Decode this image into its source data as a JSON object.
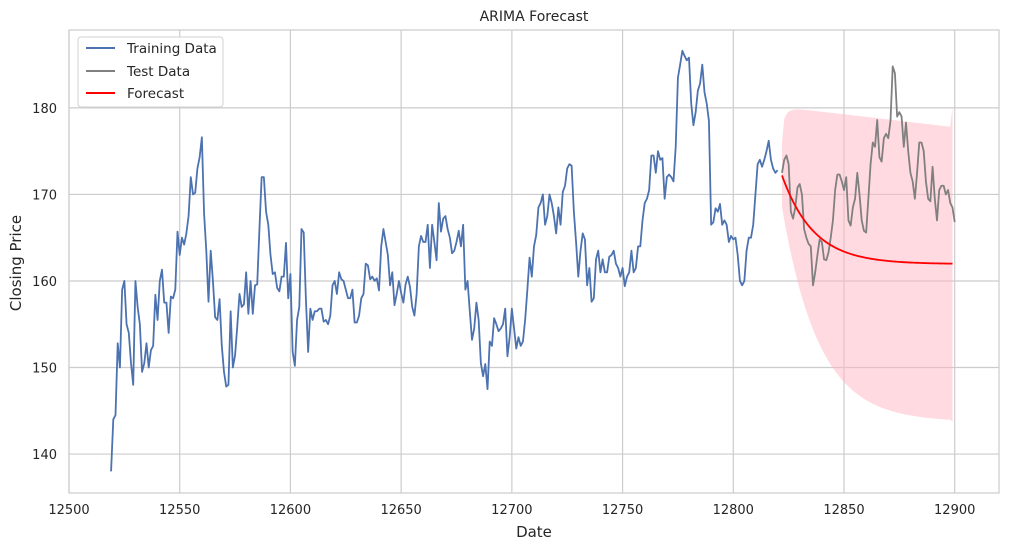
{
  "chart_data": {
    "type": "line",
    "title": "ARIMA Forecast",
    "xlabel": "Date",
    "ylabel": "Closing Price",
    "xlim": [
      12500,
      12920
    ],
    "ylim": [
      135.5,
      189
    ],
    "x_ticks": [
      12500,
      12550,
      12600,
      12650,
      12700,
      12750,
      12800,
      12850,
      12900
    ],
    "y_ticks": [
      140,
      150,
      160,
      170,
      180
    ],
    "grid": true,
    "legend_position": "top-left",
    "colors": {
      "training": "#4c72b0",
      "test": "#808080",
      "forecast": "#ff0000",
      "interval": "#ffb6c1"
    },
    "legend": [
      "Training Data",
      "Test Data",
      "Forecast"
    ],
    "series": [
      {
        "name": "Training Data",
        "x_start": 12519,
        "values": [
          138,
          144,
          144.5,
          152.8,
          150,
          159,
          160,
          155,
          154,
          150.5,
          148,
          160,
          157,
          155,
          149.5,
          150.5,
          152.8,
          150,
          152,
          152.5,
          158.4,
          155.5,
          160,
          161.3,
          157.5,
          157.5,
          154,
          158.2,
          158,
          159,
          165.7,
          163,
          165,
          164.2,
          165.5,
          167.5,
          172,
          170,
          170.2,
          173,
          174.3,
          176.6,
          167.8,
          163.5,
          157.6,
          163.5,
          160,
          155.8,
          155.5,
          157.9,
          152.5,
          149.5,
          147.8,
          148,
          156.5,
          150,
          151.4,
          154.8,
          158.5,
          157,
          157.3,
          161,
          156.2,
          160,
          156.2,
          159.5,
          159.6,
          166,
          172,
          172,
          168,
          166.5,
          163,
          160.8,
          161,
          159.2,
          158.8,
          160.5,
          160.5,
          164.4,
          158,
          160.8,
          151.8,
          150.2,
          155.5,
          157,
          166,
          165.6,
          157.8,
          151.8,
          156.8,
          155.5,
          156.5,
          156.5,
          156.8,
          156.8,
          155.3,
          155.5,
          155,
          156,
          159.5,
          160,
          158.5,
          161,
          160.2,
          160,
          159,
          158,
          158,
          159,
          155.2,
          155.2,
          156,
          158,
          158.5,
          162,
          161.8,
          160.2,
          160.5,
          160,
          160.3,
          158.9,
          164,
          166,
          164.5,
          163,
          159.5,
          161,
          157.2,
          158.5,
          160,
          158.6,
          157.5,
          159.6,
          160.5,
          159.3,
          157,
          156,
          158.5,
          164,
          165.2,
          164.5,
          164.5,
          166.5,
          161.5,
          166.5,
          164.5,
          162.4,
          169,
          165.7,
          167.2,
          167.5,
          166,
          165,
          163.2,
          163.5,
          164.5,
          165.8,
          164,
          166.5,
          159,
          160,
          156.5,
          153.2,
          154.5,
          157.5,
          155.5,
          150.5,
          149,
          150.4,
          147.5,
          153,
          152.5,
          155.7,
          155,
          154.2,
          154.5,
          155,
          156.8,
          151.3,
          153.5,
          156.8,
          154.5,
          152.2,
          153.5,
          152.5,
          153,
          155.5,
          159,
          162.7,
          160.5,
          164,
          165.3,
          168.5,
          169,
          170,
          166.5,
          167.5,
          170,
          169,
          167.5,
          165.5,
          168.5,
          166.5,
          170.3,
          171,
          173,
          173.5,
          173.3,
          168,
          164.5,
          160.5,
          163.5,
          165.5,
          164.8,
          159.5,
          161.5,
          157.6,
          158,
          162.5,
          163.5,
          161,
          162.5,
          161,
          161,
          162.8,
          163,
          163.5,
          162,
          161.5,
          160.5,
          161.5,
          159.4,
          160.5,
          161,
          163.5,
          161,
          161.5,
          164,
          164,
          167,
          169,
          169.5,
          170.5,
          174.5,
          174.5,
          172.5,
          175,
          174,
          174.2,
          169.5,
          172,
          172.3,
          172,
          171.5,
          175.5,
          183.5,
          185,
          186.6,
          186,
          185.5,
          185.8,
          180.5,
          178,
          179.5,
          182,
          182.8,
          185,
          181.8,
          180.5,
          178.5,
          166.5,
          166.8,
          168.4,
          168,
          168.9,
          166.5,
          167,
          166.5,
          164.5,
          165.2,
          164.8,
          165,
          163,
          160,
          159.5,
          160,
          163.5,
          165,
          165,
          166.5,
          170,
          173.5,
          174,
          173.2,
          174,
          175,
          176.2,
          174,
          173,
          172.5,
          172.8
        ]
      },
      {
        "name": "Test Data",
        "x_start": 12822,
        "values": [
          172.5,
          174,
          174.5,
          173.5,
          168,
          167.2,
          168.5,
          170.8,
          171.2,
          170,
          166,
          165,
          164.3,
          164,
          159.5,
          161,
          163,
          164.8,
          164.5,
          162.5,
          162.4,
          163.3,
          165,
          167,
          170.5,
          172.3,
          172.3,
          171.5,
          170.5,
          172,
          167,
          166.4,
          168.5,
          169.5,
          172.5,
          170,
          167,
          165.8,
          165.6,
          169.5,
          173.5,
          176,
          175.5,
          178.6,
          174.3,
          173.8,
          176.5,
          177,
          176.5,
          178.5,
          184.8,
          184,
          179,
          179.5,
          179,
          175.5,
          178.3,
          175,
          172.5,
          171.5,
          169.5,
          172.5,
          176,
          176,
          175,
          171.5,
          169.5,
          169.2,
          173.2,
          169.5,
          167,
          170.5,
          171,
          171,
          170,
          170.5,
          169,
          168.5,
          166.8
        ]
      },
      {
        "name": "Forecast",
        "x_start": 12822,
        "x_end": 12899,
        "start_value": 172.2,
        "end_value": 162,
        "decay": 0.07,
        "ci_lower_start": 168.5,
        "ci_upper_start": 176,
        "ci_lower_end": 143.7,
        "ci_upper_end": 180.1
      }
    ]
  }
}
